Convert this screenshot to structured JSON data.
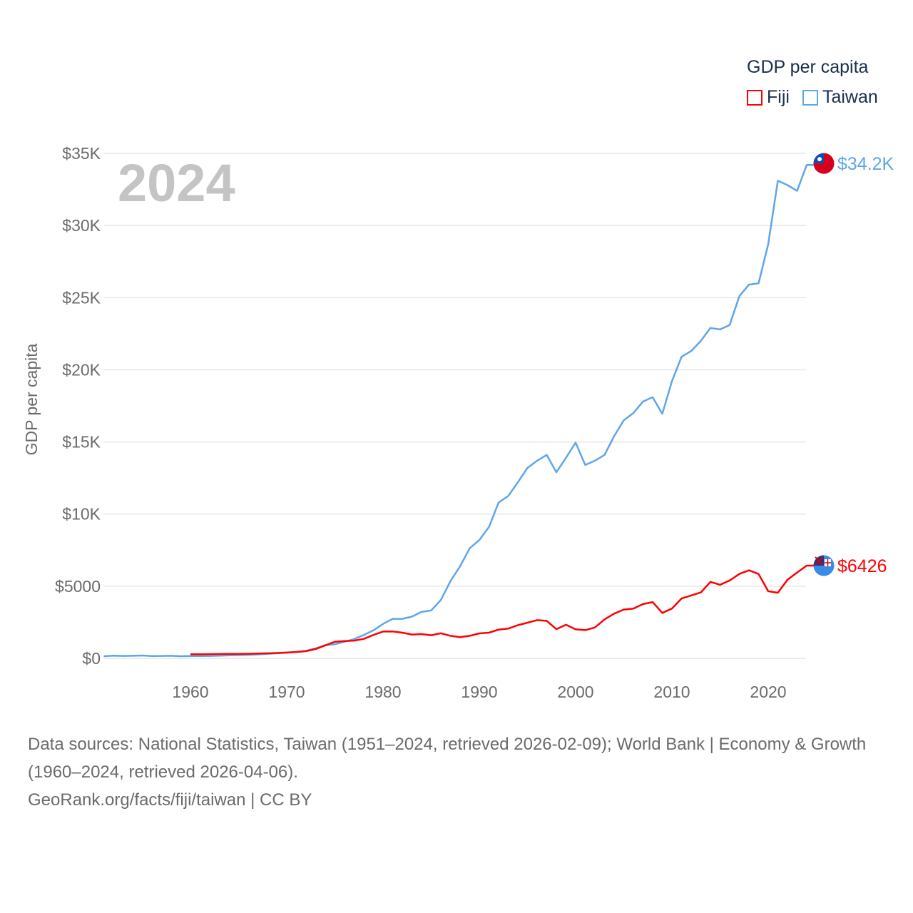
{
  "legend": {
    "title": "GDP per capita",
    "items": [
      {
        "label": "Fiji",
        "color": "#ff0000"
      },
      {
        "label": "Taiwan",
        "color": "#5ea6ea"
      }
    ]
  },
  "footer": {
    "sources": "Data sources: National Statistics, Taiwan (1951–2024, retrieved 2026-02-09); World Bank | Economy & Growth (1960–2024, retrieved 2026-04-06).",
    "credit": "GeoRank.org/facts/fiji/taiwan | CC BY"
  },
  "chart_data": {
    "type": "line",
    "title": "",
    "year_label": "2024",
    "xlabel": "",
    "ylabel": "GDP per capita",
    "xlim": [
      1951,
      2024
    ],
    "ylim": [
      0,
      35000
    ],
    "x_ticks": [
      1960,
      1970,
      1980,
      1990,
      2000,
      2010,
      2020
    ],
    "y_ticks": [
      {
        "value": 0,
        "label": "$0"
      },
      {
        "value": 5000,
        "label": "$5000"
      },
      {
        "value": 10000,
        "label": "$10K"
      },
      {
        "value": 15000,
        "label": "$15K"
      },
      {
        "value": 20000,
        "label": "$20K"
      },
      {
        "value": 25000,
        "label": "$25K"
      },
      {
        "value": 30000,
        "label": "$30K"
      },
      {
        "value": 35000,
        "label": "$35K"
      }
    ],
    "grid": true,
    "legend_position": "top-right",
    "series": [
      {
        "name": "Taiwan",
        "color": "#5ea6ea",
        "end_label": "$34.2K",
        "flag": "taiwan-flag",
        "start_year": 1951,
        "values": [
          150,
          190,
          170,
          180,
          200,
          160,
          170,
          180,
          150,
          160,
          160,
          170,
          190,
          210,
          220,
          240,
          270,
          310,
          350,
          400,
          450,
          520,
          690,
          920,
          980,
          1150,
          1340,
          1620,
          1940,
          2390,
          2740,
          2740,
          2890,
          3220,
          3320,
          4040,
          5350,
          6380,
          7630,
          8200,
          9100,
          10800,
          11250,
          12200,
          13200,
          13700,
          14100,
          12900,
          13900,
          14950,
          13400,
          13700,
          14100,
          15400,
          16500,
          17000,
          17800,
          18100,
          16950,
          19200,
          20900,
          21300,
          22000,
          22900,
          22800,
          23100,
          25100,
          25900,
          26000,
          28700,
          33100,
          32800,
          32400,
          34200
        ]
      },
      {
        "name": "Fiji",
        "color": "#ff0000",
        "end_label": "$6426",
        "flag": "fiji-flag",
        "start_year": 1960,
        "values": [
          280,
          285,
          290,
          300,
          305,
          310,
          315,
          330,
          350,
          370,
          400,
          440,
          500,
          650,
          900,
          1150,
          1200,
          1230,
          1350,
          1620,
          1860,
          1870,
          1780,
          1650,
          1680,
          1600,
          1740,
          1560,
          1470,
          1560,
          1730,
          1780,
          1990,
          2060,
          2300,
          2470,
          2650,
          2600,
          2020,
          2330,
          2010,
          1960,
          2140,
          2700,
          3100,
          3380,
          3450,
          3760,
          3900,
          3150,
          3450,
          4150,
          4360,
          4570,
          5300,
          5100,
          5400,
          5850,
          6100,
          5850,
          4650,
          4550,
          5450,
          5950,
          6426
        ]
      }
    ]
  }
}
